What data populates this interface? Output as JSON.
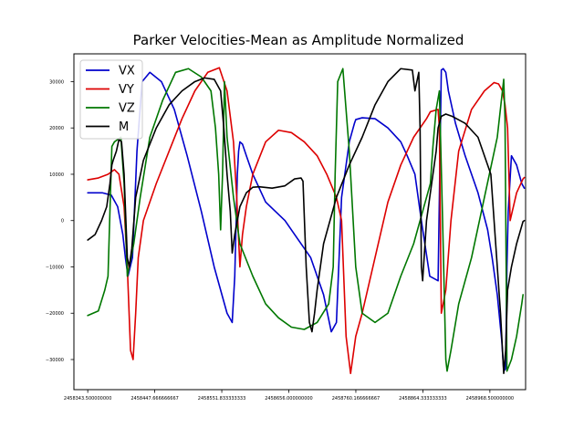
{
  "chart_data": {
    "type": "line",
    "title": "Parker Velocities-Mean as Amplitude Normalized",
    "xlabel": "",
    "ylabel": "",
    "xlim": [
      2458322,
      2459024
    ],
    "ylim": [
      -36500,
      36000
    ],
    "x_ticks": [
      2458343.5,
      2458447.666666667,
      2458551.833333333,
      2458656.0,
      2458760.166666667,
      2458864.333333333,
      2458968.5,
      2459072.666666667
    ],
    "x_tick_labels": [
      "2458343.500000000",
      "2458447.666666667",
      "2458551.833333333",
      "2458656.000000000",
      "2458760.166666667",
      "2458864.333333333",
      "2458968.500000000",
      ""
    ],
    "y_ticks": [
      -30000,
      -20000,
      -10000,
      0,
      10000,
      20000,
      30000
    ],
    "y_tick_labels": [
      "−30000",
      "−20000",
      "−10000",
      "0",
      "10000",
      "20000",
      "30000"
    ],
    "legend_position": "top-left",
    "grid": false,
    "series": [
      {
        "name": "VX",
        "color": "#0000cc",
        "x": [
          2458343.5,
          2458366,
          2458380,
          2458390,
          2458398,
          2458402,
          2458406,
          2458413,
          2458420,
          2458428,
          2458440,
          2458458,
          2458478,
          2458498,
          2458520,
          2458540,
          2458560,
          2458568,
          2458572,
          2458576,
          2458578,
          2458580,
          2458584,
          2458590,
          2458600,
          2458620,
          2458650,
          2458690,
          2458710,
          2458722,
          2458730,
          2458738,
          2458750,
          2458756,
          2458758,
          2458760,
          2458770,
          2458790,
          2458810,
          2458830,
          2458840,
          2458852,
          2458862,
          2458875,
          2458888,
          2458893,
          2458896,
          2458900,
          2458904,
          2458915,
          2458930,
          2458950,
          2458965,
          2458972,
          2458980,
          2458987,
          2458990,
          2458993,
          2458995,
          2458997,
          2459002,
          2459010,
          2459018,
          2459022
        ],
        "y": [
          6000,
          6000,
          5500,
          3000,
          -3000,
          -8000,
          -12000,
          -8000,
          15000,
          30000,
          32000,
          30000,
          24000,
          14000,
          2000,
          -10000,
          -20000,
          -22000,
          -12000,
          10000,
          15000,
          17000,
          16500,
          14000,
          10000,
          4000,
          0,
          -8000,
          -16000,
          -24000,
          -22000,
          5000,
          17000,
          20000,
          21000,
          21800,
          22200,
          22000,
          20000,
          17000,
          14000,
          10000,
          0,
          -12000,
          -13000,
          32500,
          32800,
          32000,
          28000,
          21000,
          14000,
          6000,
          -2000,
          -8000,
          -16000,
          -26000,
          -32500,
          -32000,
          -10000,
          2000,
          14000,
          12000,
          8000,
          7000
        ]
      },
      {
        "name": "VY",
        "color": "#dd0000",
        "x": [
          2458343.5,
          2458360,
          2458375,
          2458385,
          2458392,
          2458400,
          2458405,
          2458410,
          2458414,
          2458418,
          2458422,
          2458430,
          2458450,
          2458470,
          2458490,
          2458510,
          2458530,
          2458548,
          2458560,
          2458570,
          2458575,
          2458580,
          2458584,
          2458590,
          2458600,
          2458620,
          2458640,
          2458660,
          2458680,
          2458700,
          2458715,
          2458730,
          2458738,
          2458745,
          2458752,
          2458760,
          2458770,
          2458790,
          2458810,
          2458830,
          2458850,
          2458870,
          2458876,
          2458888,
          2458890,
          2458893,
          2458900,
          2458908,
          2458920,
          2458940,
          2458960,
          2458975,
          2458982,
          2458988,
          2458992,
          2458996,
          2459000,
          2459010,
          2459020,
          2459022
        ],
        "y": [
          8800,
          9200,
          10000,
          11000,
          10000,
          3000,
          -10000,
          -28000,
          -30000,
          -20000,
          -8000,
          0,
          8000,
          15000,
          22000,
          28000,
          32000,
          33000,
          28000,
          17000,
          5000,
          -10000,
          -3000,
          3000,
          10000,
          17000,
          19500,
          19000,
          17000,
          14000,
          10000,
          5000,
          0,
          -25000,
          -33000,
          -25000,
          -20000,
          -8000,
          4000,
          12000,
          18000,
          22000,
          23500,
          24000,
          20000,
          -20000,
          -15000,
          0,
          15000,
          24000,
          28000,
          29800,
          29500,
          28000,
          25000,
          20000,
          0,
          6000,
          9000,
          9300
        ]
      },
      {
        "name": "VZ",
        "color": "#007700",
        "x": [
          2458343.5,
          2458360,
          2458370,
          2458375,
          2458381,
          2458385,
          2458390,
          2458395,
          2458400,
          2458405,
          2458408,
          2458415,
          2458425,
          2458440,
          2458460,
          2458480,
          2458500,
          2458520,
          2458535,
          2458542,
          2458547,
          2458550,
          2458553,
          2458556,
          2458560,
          2458570,
          2458580,
          2458600,
          2458620,
          2458640,
          2458660,
          2458680,
          2458700,
          2458718,
          2458725,
          2458728,
          2458732,
          2458740,
          2458750,
          2458760,
          2458770,
          2458790,
          2458810,
          2458830,
          2458850,
          2458868,
          2458876,
          2458880,
          2458885,
          2458890,
          2458895,
          2458900,
          2458902,
          2458908,
          2458920,
          2458940,
          2458960,
          2458980,
          2458990,
          2458992,
          2458995,
          2459002,
          2459010,
          2459018,
          2459020
        ],
        "y": [
          -20500,
          -19500,
          -15000,
          -12000,
          16000,
          17000,
          17500,
          18000,
          8000,
          -12000,
          -10000,
          -5000,
          5000,
          18000,
          26000,
          32000,
          32800,
          31000,
          28000,
          20000,
          10000,
          -2000,
          10000,
          30000,
          18000,
          5000,
          -5000,
          -12000,
          -18000,
          -21000,
          -23000,
          -23500,
          -22000,
          -18000,
          -10000,
          10000,
          30000,
          32800,
          15000,
          -10000,
          -20000,
          -22000,
          -20000,
          -12000,
          -5000,
          4000,
          8000,
          16000,
          24000,
          28000,
          0,
          -30000,
          -32500,
          -28000,
          -18000,
          -8000,
          5000,
          18000,
          30500,
          22000,
          -32500,
          -30000,
          -25000,
          -18000,
          -16000
        ]
      },
      {
        "name": "M",
        "color": "#000000",
        "x": [
          2458343.5,
          2458355,
          2458365,
          2458373,
          2458378,
          2458381,
          2458383,
          2458388,
          2458392,
          2458396,
          2458400,
          2458405,
          2458408,
          2458412,
          2458418,
          2458430,
          2458450,
          2458470,
          2458490,
          2458510,
          2458525,
          2458540,
          2458550,
          2458555,
          2458560,
          2458565,
          2458568,
          2458572,
          2458580,
          2458590,
          2458600,
          2458610,
          2458630,
          2458650,
          2458665,
          2458675,
          2458678,
          2458683,
          2458688,
          2458692,
          2458696,
          2458700,
          2458710,
          2458730,
          2458750,
          2458770,
          2458790,
          2458810,
          2458830,
          2458848,
          2458852,
          2458855,
          2458858,
          2458860,
          2458862,
          2458864,
          2458870,
          2458880,
          2458885,
          2458888,
          2458893,
          2458900,
          2458910,
          2458930,
          2458950,
          2458970,
          2458985,
          2458990,
          2458993,
          2458996,
          2459002,
          2459010,
          2459020,
          2459022
        ],
        "y": [
          -4200,
          -3000,
          0,
          3000,
          8000,
          12000,
          13000,
          15000,
          17500,
          17000,
          10000,
          -8000,
          -10000,
          -6000,
          5000,
          13000,
          20000,
          25000,
          28000,
          30000,
          30800,
          30500,
          28000,
          20000,
          10000,
          2000,
          -7000,
          -3000,
          3000,
          6000,
          7200,
          7300,
          7000,
          7500,
          9000,
          9200,
          8500,
          -10000,
          -22000,
          -24000,
          -20000,
          -15000,
          -5000,
          5000,
          12000,
          18000,
          25000,
          30000,
          32800,
          32500,
          28000,
          30000,
          32000,
          20000,
          -10000,
          -13000,
          0,
          10000,
          15000,
          20000,
          22500,
          23000,
          22500,
          21000,
          18000,
          10000,
          -20000,
          -33000,
          -28000,
          -15000,
          -10000,
          -5000,
          -200,
          0
        ]
      }
    ]
  }
}
